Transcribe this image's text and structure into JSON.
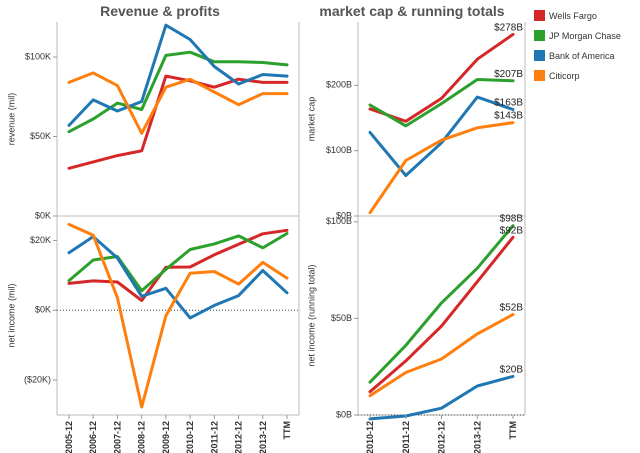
{
  "chart_data": [
    {
      "type": "line",
      "title": "Revenue & profits",
      "ylabel": "revenue (mil)",
      "x": [
        "2005-12",
        "2006-12",
        "2007-12",
        "2008-12",
        "2009-12",
        "2010-12",
        "2011-12",
        "2012-12",
        "2013-12",
        "TTM"
      ],
      "ylim": [
        0,
        122000
      ],
      "yticks": [
        {
          "v": 0,
          "label": "$0K"
        },
        {
          "v": 50000,
          "label": "$50K"
        },
        {
          "v": 100000,
          "label": "$100K"
        }
      ],
      "series": [
        {
          "name": "Wells Fargo",
          "values": [
            30000,
            34000,
            38000,
            41000,
            88000,
            85000,
            81000,
            86000,
            84000,
            84000
          ]
        },
        {
          "name": "JP Morgan Chase",
          "values": [
            53000,
            61000,
            71000,
            67000,
            101000,
            103000,
            97000,
            97000,
            96500,
            95000
          ]
        },
        {
          "name": "Bank of America",
          "values": [
            57000,
            73000,
            66000,
            72000,
            120000,
            111000,
            94000,
            83000,
            89000,
            88000
          ]
        },
        {
          "name": "Citicorp",
          "values": [
            84000,
            90000,
            82000,
            52000,
            81000,
            86000,
            78000,
            70000,
            77000,
            77000
          ]
        }
      ]
    },
    {
      "type": "line",
      "ylabel": "net income (mil)",
      "x": [
        "2005-12",
        "2006-12",
        "2007-12",
        "2008-12",
        "2009-12",
        "2010-12",
        "2011-12",
        "2012-12",
        "2013-12",
        "TTM"
      ],
      "ylim": [
        -30000,
        27000
      ],
      "yticks": [
        {
          "v": -20000,
          "label": "($20K)"
        },
        {
          "v": 0,
          "label": "$0K"
        },
        {
          "v": 20000,
          "label": "$20K"
        }
      ],
      "zero_line": true,
      "series": [
        {
          "name": "Wells Fargo",
          "values": [
            7700,
            8400,
            8100,
            2800,
            12300,
            12400,
            15900,
            18900,
            21900,
            22900
          ]
        },
        {
          "name": "JP Morgan Chase",
          "values": [
            8500,
            14400,
            15400,
            5600,
            11700,
            17400,
            19000,
            21300,
            17900,
            22000
          ]
        },
        {
          "name": "Bank of America",
          "values": [
            16500,
            21100,
            15000,
            4000,
            6300,
            -2200,
            1400,
            4200,
            11400,
            5000
          ]
        },
        {
          "name": "Citicorp",
          "values": [
            24600,
            21500,
            3600,
            -27700,
            -1600,
            10600,
            11100,
            7500,
            13700,
            9200
          ]
        }
      ]
    },
    {
      "type": "line",
      "title": "market cap & running totals",
      "ylabel": "market cap",
      "x": [
        "2010-12",
        "2011-12",
        "2012-12",
        "2013-12",
        "TTM"
      ],
      "ylim": [
        0,
        297000
      ],
      "yticks": [
        {
          "v": 0,
          "label": "$0B"
        },
        {
          "v": 100000,
          "label": "$100B"
        },
        {
          "v": 200000,
          "label": "$200B"
        }
      ],
      "series": [
        {
          "name": "Wells Fargo",
          "values": [
            164000,
            145000,
            180000,
            240000,
            278000
          ],
          "end_label": "$278B"
        },
        {
          "name": "JP Morgan Chase",
          "values": [
            170000,
            138000,
            172000,
            209000,
            207000
          ],
          "end_label": "$207B"
        },
        {
          "name": "Bank of America",
          "values": [
            128000,
            62000,
            112000,
            182000,
            163000
          ],
          "end_label": "$163B"
        },
        {
          "name": "Citicorp",
          "values": [
            5000,
            85000,
            116000,
            135000,
            143000
          ],
          "end_label": "$143B"
        }
      ]
    },
    {
      "type": "line",
      "ylabel": "net income (running total)",
      "x": [
        "2010-12",
        "2011-12",
        "2012-12",
        "2013-12",
        "TTM"
      ],
      "ylim": [
        0,
        103000
      ],
      "yticks": [
        {
          "v": 0,
          "label": "$0B"
        },
        {
          "v": 50000,
          "label": "$50B"
        },
        {
          "v": 100000,
          "label": "$100B"
        }
      ],
      "zero_line": true,
      "series": [
        {
          "name": "Wells Fargo",
          "values": [
            12000,
            28000,
            46000,
            69000,
            92000
          ],
          "end_label": "$92B"
        },
        {
          "name": "JP Morgan Chase",
          "values": [
            17000,
            36000,
            58000,
            76000,
            98000
          ],
          "end_label": "$98B"
        },
        {
          "name": "Bank of America",
          "values": [
            -2000,
            -500,
            3500,
            15000,
            20000
          ],
          "end_label": "$20B"
        },
        {
          "name": "Citicorp",
          "values": [
            10000,
            22000,
            29000,
            42000,
            52000
          ],
          "end_label": "$52B"
        }
      ]
    }
  ],
  "legend": {
    "placement": "top-right",
    "items": [
      {
        "name": "Wells Fargo",
        "color": "#d62728"
      },
      {
        "name": "JP Morgan Chase",
        "color": "#2ca02c"
      },
      {
        "name": "Bank of America",
        "color": "#1f77b4"
      },
      {
        "name": "Citicorp",
        "color": "#ff7f0e"
      }
    ]
  },
  "colors": {
    "Wells Fargo": "#d62728",
    "JP Morgan Chase": "#2ca02c",
    "Bank of America": "#1f77b4",
    "Citicorp": "#ff7f0e"
  }
}
